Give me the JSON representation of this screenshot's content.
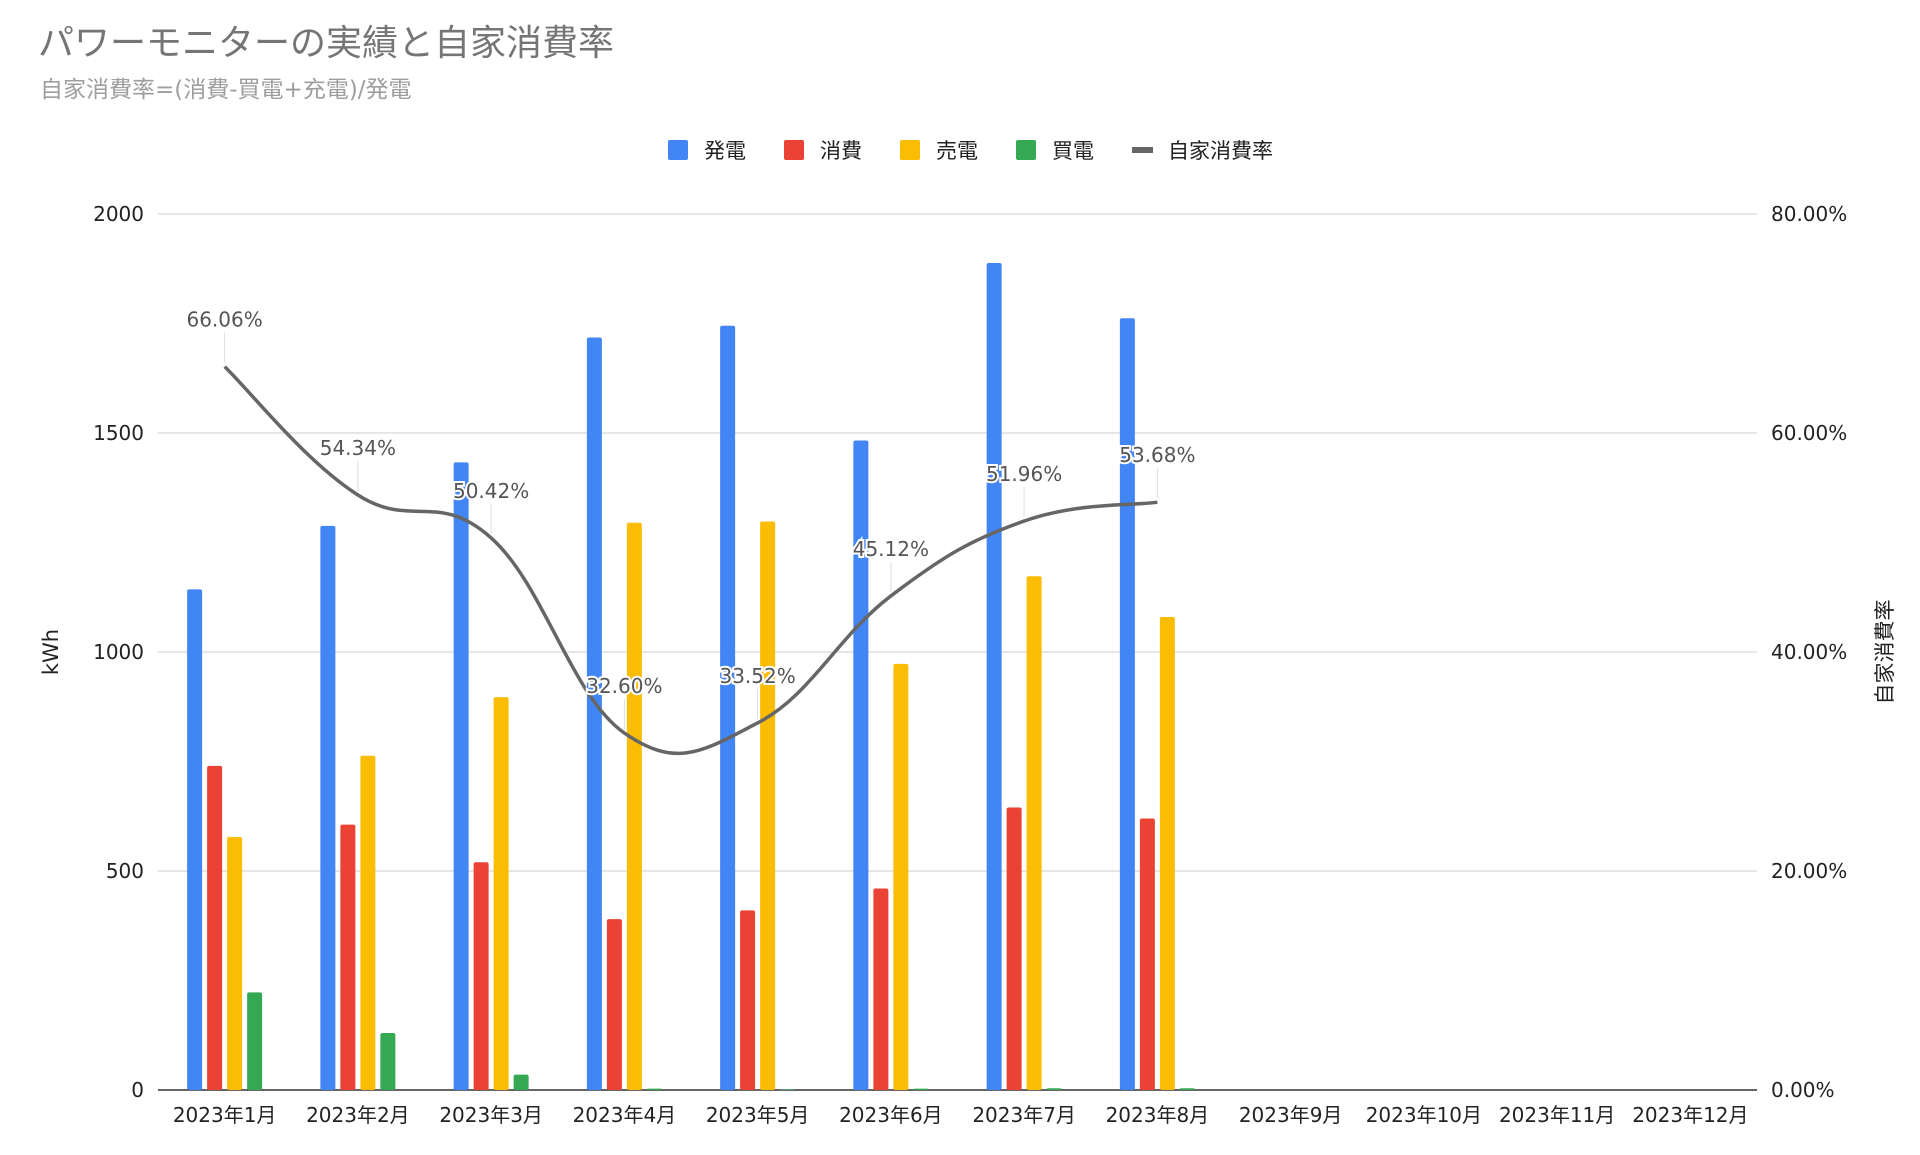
{
  "chart_data": {
    "type": "bar",
    "title": "パワーモニターの実績と自家消費率",
    "subtitle": "自家消費率=(消費-買電+充電)/発電",
    "categories": [
      "2023年1月",
      "2023年2月",
      "2023年3月",
      "2023年4月",
      "2023年5月",
      "2023年6月",
      "2023年7月",
      "2023年8月",
      "2023年9月",
      "2023年10月",
      "2023年11月",
      "2023年12月"
    ],
    "series": [
      {
        "name": "発電",
        "type": "bar",
        "color": "#4285f4",
        "values": [
          1143,
          1288,
          1433,
          1718,
          1745,
          1483,
          1888,
          1762,
          null,
          null,
          null,
          null
        ]
      },
      {
        "name": "消費",
        "type": "bar",
        "color": "#ea4335",
        "values": [
          740,
          606,
          520,
          390,
          410,
          460,
          645,
          620,
          null,
          null,
          null,
          null
        ]
      },
      {
        "name": "売電",
        "type": "bar",
        "color": "#fbbc04",
        "values": [
          578,
          763,
          897,
          1295,
          1298,
          973,
          1173,
          1080,
          null,
          null,
          null,
          null
        ]
      },
      {
        "name": "買電",
        "type": "bar",
        "color": "#34a853",
        "values": [
          223,
          130,
          35,
          3,
          0,
          3,
          4,
          4,
          null,
          null,
          null,
          null
        ]
      },
      {
        "name": "自家消費率",
        "type": "line",
        "axis": "right",
        "color": "#666666",
        "values": [
          66.06,
          54.34,
          50.42,
          32.6,
          33.52,
          45.12,
          51.96,
          53.68,
          null,
          null,
          null,
          null
        ],
        "data_labels": [
          "66.06%",
          "54.34%",
          "50.42%",
          "32.60%",
          "33.52%",
          "45.12%",
          "51.96%",
          "53.68%"
        ]
      }
    ],
    "ylabel": "kWh",
    "ylim": [
      0,
      2000
    ],
    "yticks": [
      "0",
      "500",
      "1000",
      "1500",
      "2000"
    ],
    "y2label": "自家消費率",
    "y2lim": [
      0,
      80
    ],
    "y2ticks": [
      "0.00%",
      "20.00%",
      "40.00%",
      "60.00%",
      "80.00%"
    ],
    "legend_position": "top",
    "grid": true
  }
}
